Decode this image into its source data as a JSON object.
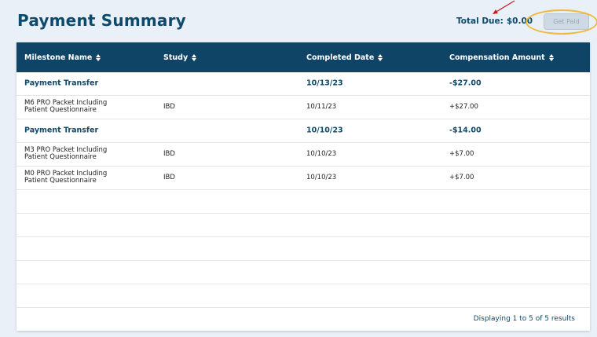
{
  "header": {
    "title": "Payment Summary",
    "total_due_label": "Total Due:",
    "total_due_value": "$0.00",
    "get_paid_label": "Get Paid"
  },
  "table": {
    "columns": [
      "Milestone Name",
      "Study",
      "Completed Date",
      "Compensation Amount"
    ],
    "rows": [
      {
        "type": "transfer",
        "milestone": "Payment Transfer",
        "study": "",
        "date": "10/13/23",
        "amount": "-$27.00"
      },
      {
        "type": "item",
        "milestone_line1": "M6 PRO Packet Including",
        "milestone_line2": "Patient Questionnaire",
        "study": "IBD",
        "date": "10/11/23",
        "amount": "+$27.00"
      },
      {
        "type": "transfer",
        "milestone": "Payment Transfer",
        "study": "",
        "date": "10/10/23",
        "amount": "-$14.00"
      },
      {
        "type": "item",
        "milestone_line1": "M3 PRO Packet Including",
        "milestone_line2": "Patient Questionnaire",
        "study": "IBD",
        "date": "10/10/23",
        "amount": "+$7.00"
      },
      {
        "type": "item",
        "milestone_line1": "M0 PRO Packet Including",
        "milestone_line2": "Patient Questionnaire",
        "study": "IBD",
        "date": "10/10/23",
        "amount": "+$7.00"
      }
    ],
    "footer": "Displaying 1 to 5 of 5 results"
  },
  "colors": {
    "header_bg": "#0f4466",
    "accent_text": "#0d4a6b",
    "annotation_ellipse": "#f0b93a",
    "annotation_arrow": "#cc1f1f"
  },
  "icons": {
    "sort": "sort-icon",
    "annotation": "arrow-annotation-icon"
  }
}
